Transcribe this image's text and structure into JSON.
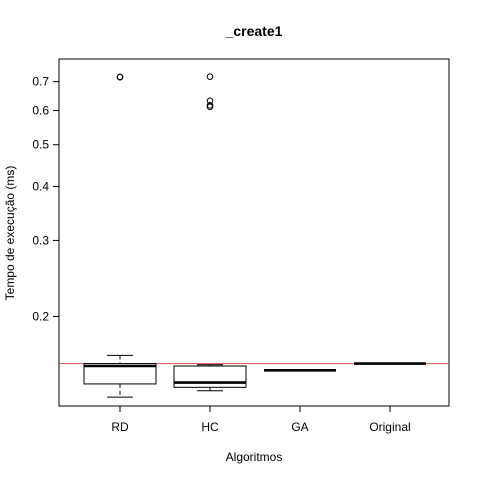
{
  "chart_data": {
    "type": "box",
    "title": "_create1",
    "xlabel": "Algoritmos",
    "ylabel": "Tempo de execução (ms)",
    "yscale": "log",
    "ylim": [
      0.124,
      0.79
    ],
    "yticks": [
      0.2,
      0.3,
      0.4,
      0.5,
      0.6,
      0.7
    ],
    "categories": [
      "RD",
      "HC",
      "GA",
      "Original"
    ],
    "boxes": [
      {
        "name": "RD",
        "whisker_low": 0.13,
        "q1": 0.1395,
        "median": 0.1535,
        "q3": 0.1555,
        "whisker_high": 0.1625,
        "outliers": [
          0.717,
          0.718
        ]
      },
      {
        "name": "HC",
        "whisker_low": 0.1345,
        "q1": 0.137,
        "median": 0.1405,
        "q3": 0.1535,
        "whisker_high": 0.1545,
        "outliers": [
          0.612,
          0.617,
          0.632,
          0.719
        ]
      },
      {
        "name": "GA",
        "whisker_low": 0.15,
        "q1": 0.15,
        "median": 0.15,
        "q3": 0.15,
        "whisker_high": 0.15,
        "outliers": []
      },
      {
        "name": "Original",
        "whisker_low": 0.1555,
        "q1": 0.1555,
        "median": 0.1555,
        "q3": 0.1555,
        "whisker_high": 0.1555,
        "outliers": []
      }
    ],
    "reference_line": {
      "value": 0.1555,
      "color": "#d9534f"
    },
    "colors": {
      "box": "#000000",
      "median": "#000000",
      "outlier": "#000000"
    },
    "grid": false,
    "legend": "none"
  }
}
